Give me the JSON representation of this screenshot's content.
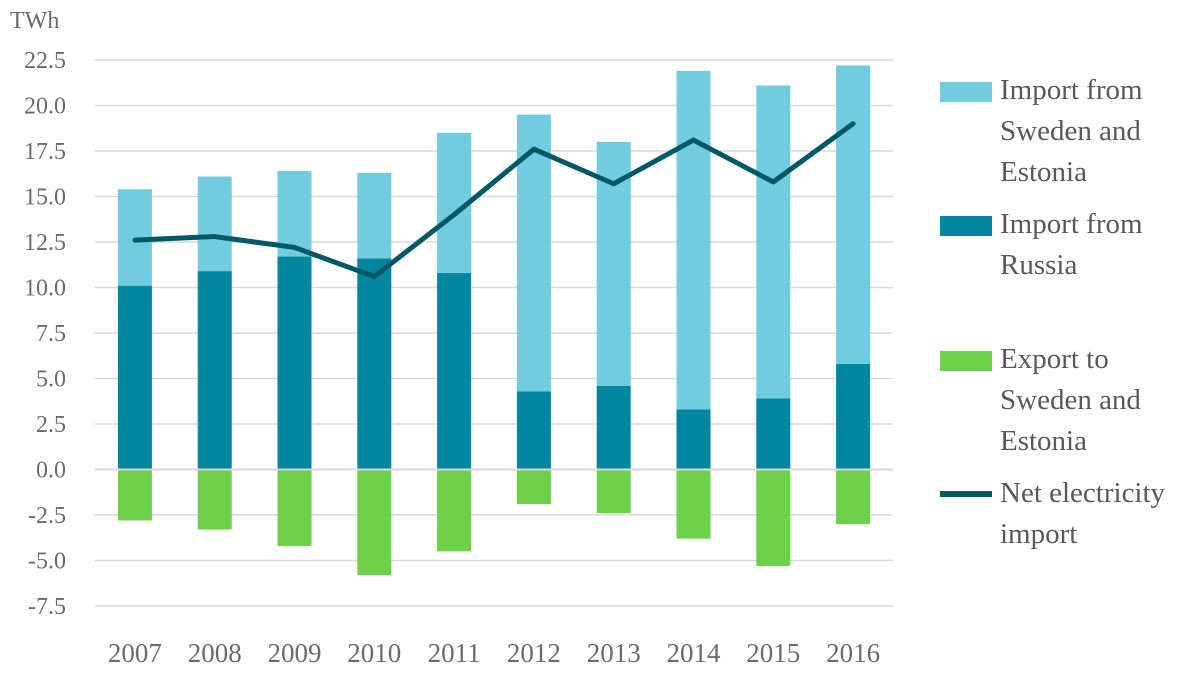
{
  "chart_data": {
    "type": "bar",
    "stacked": true,
    "unit_label": "TWh",
    "categories": [
      "2007",
      "2008",
      "2009",
      "2010",
      "2011",
      "2012",
      "2013",
      "2014",
      "2015",
      "2016"
    ],
    "series": [
      {
        "name": "Import from Russia",
        "key": "russia",
        "kind": "bar",
        "color": "#00869e",
        "values": [
          10.1,
          10.9,
          11.7,
          11.6,
          10.8,
          4.3,
          4.6,
          3.3,
          3.9,
          5.8
        ]
      },
      {
        "name": "Import from Sweden and Estonia",
        "key": "sweden_estonia",
        "kind": "bar",
        "color": "#71ccdf",
        "values": [
          5.3,
          5.2,
          4.7,
          4.7,
          7.7,
          15.2,
          13.4,
          18.6,
          17.2,
          16.4
        ]
      },
      {
        "name": "Export to Sweden and Estonia",
        "key": "export",
        "kind": "bar",
        "color": "#6cd049",
        "values": [
          -2.8,
          -3.3,
          -4.2,
          -5.8,
          -4.5,
          -1.9,
          -2.4,
          -3.8,
          -5.3,
          -3.0
        ]
      },
      {
        "name": "Net electricity import",
        "key": "net",
        "kind": "line",
        "color": "#005866",
        "values": [
          12.6,
          12.8,
          12.2,
          10.6,
          14.0,
          17.6,
          15.7,
          18.1,
          15.8,
          19.0
        ]
      }
    ],
    "ylim": [
      -7.5,
      22.5
    ],
    "yticks": [
      "22.5",
      "20.0",
      "17.5",
      "15.0",
      "12.5",
      "10.0",
      "7.5",
      "5.0",
      "2.5",
      "0.0",
      "-2.5",
      "-5.0",
      "-7.5"
    ],
    "ytick_values": [
      22.5,
      20,
      17.5,
      15,
      12.5,
      10,
      7.5,
      5,
      2.5,
      0,
      -2.5,
      -5,
      -7.5
    ],
    "grid": true,
    "legend_position": "right",
    "legend": [
      {
        "label_lines": [
          "Import from",
          "Sweden and",
          "Estonia"
        ],
        "series": "sweden_estonia",
        "color": "#71ccdf"
      },
      {
        "label_lines": [
          "Import from",
          "Russia"
        ],
        "series": "russia",
        "color": "#00869e"
      },
      {
        "label_lines": [
          "Export to",
          "Sweden and",
          "Estonia"
        ],
        "series": "export",
        "color": "#6cd049"
      },
      {
        "label_lines": [
          "Net electricity",
          "import"
        ],
        "series": "net",
        "color": "#005866",
        "line": true
      }
    ]
  }
}
